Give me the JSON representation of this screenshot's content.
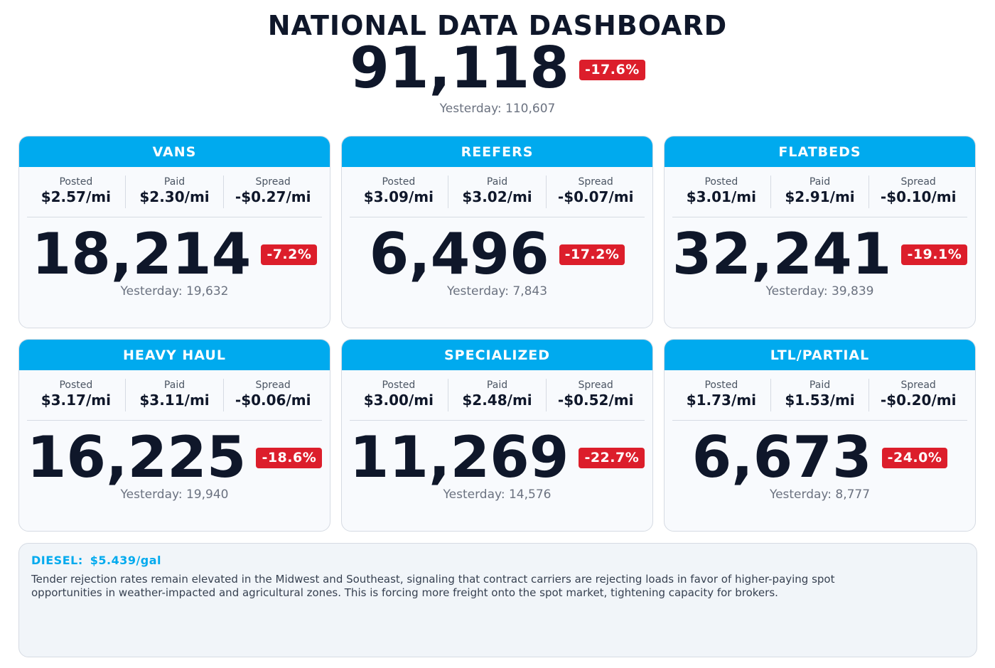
{
  "header": {
    "title": "NATIONAL DATA DASHBOARD",
    "total": "91,118",
    "change": "-17.6%",
    "yesterday": "Yesterday: 110,607"
  },
  "rate_labels": {
    "posted": "Posted",
    "paid": "Paid",
    "spread": "Spread"
  },
  "cards": [
    {
      "name": "VANS",
      "posted": "$2.57/mi",
      "paid": "$2.30/mi",
      "spread": "-$0.27/mi",
      "count": "18,214",
      "change": "-7.2%",
      "yesterday": "Yesterday: 19,632"
    },
    {
      "name": "REEFERS",
      "posted": "$3.09/mi",
      "paid": "$3.02/mi",
      "spread": "-$0.07/mi",
      "count": "6,496",
      "change": "-17.2%",
      "yesterday": "Yesterday: 7,843"
    },
    {
      "name": "FLATBEDS",
      "posted": "$3.01/mi",
      "paid": "$2.91/mi",
      "spread": "-$0.10/mi",
      "count": "32,241",
      "change": "-19.1%",
      "yesterday": "Yesterday: 39,839"
    },
    {
      "name": "HEAVY HAUL",
      "posted": "$3.17/mi",
      "paid": "$3.11/mi",
      "spread": "-$0.06/mi",
      "count": "16,225",
      "change": "-18.6%",
      "yesterday": "Yesterday: 19,940"
    },
    {
      "name": "SPECIALIZED",
      "posted": "$3.00/mi",
      "paid": "$2.48/mi",
      "spread": "-$0.52/mi",
      "count": "11,269",
      "change": "-22.7%",
      "yesterday": "Yesterday: 14,576"
    },
    {
      "name": "LTL/PARTIAL",
      "posted": "$1.73/mi",
      "paid": "$1.53/mi",
      "spread": "-$0.20/mi",
      "count": "6,673",
      "change": "-24.0%",
      "yesterday": "Yesterday: 8,777"
    }
  ],
  "notes": {
    "diesel_label": "DIESEL:",
    "diesel_value": "$5.439/gal",
    "text": "Tender rejection rates remain elevated in the Midwest and Southeast, signaling that contract carriers are rejecting loads in favor of higher-paying spot opportunities in weather-impacted and agricultural zones. This is forcing more freight onto the spot market, tightening capacity for brokers."
  },
  "colors": {
    "accent": "#00aaee",
    "negative": "#dc1e2b",
    "text": "#0f172a",
    "muted": "#6b7280"
  }
}
